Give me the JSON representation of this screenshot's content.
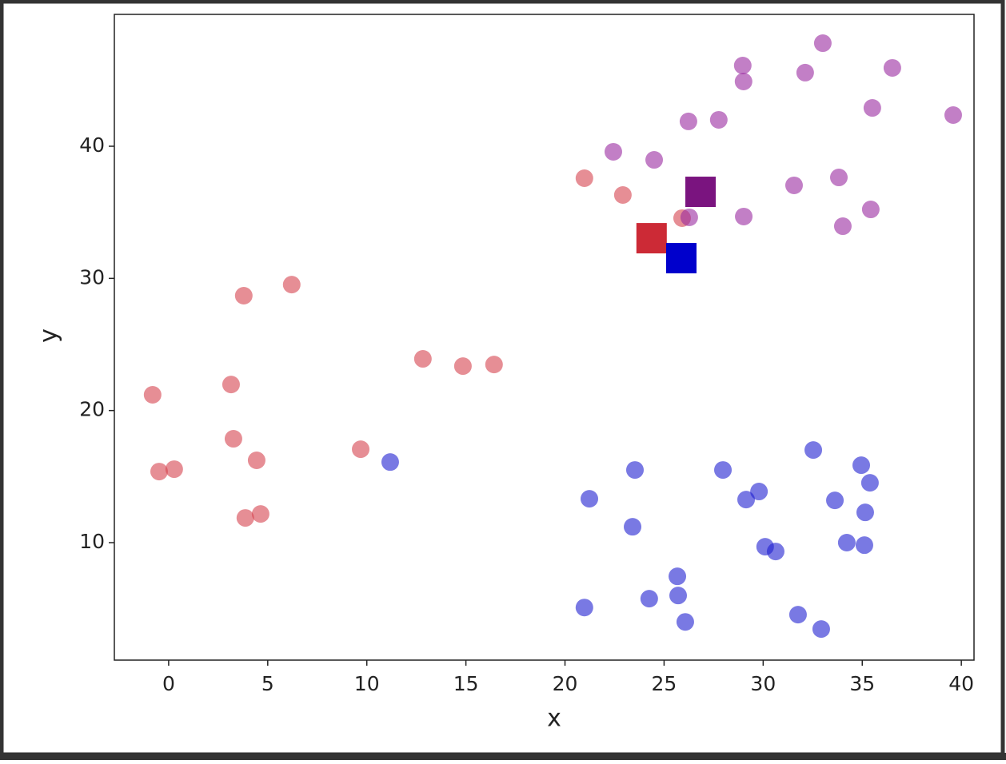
{
  "chart_data": {
    "type": "scatter",
    "x_label": "x",
    "y_label": "y",
    "xlim": [
      -2.74,
      40.64
    ],
    "xticks": [
      0,
      5,
      10,
      15,
      20,
      25,
      30,
      35,
      40
    ],
    "ylim": [
      1.11,
      49.98
    ],
    "yticks": [
      10,
      20,
      30,
      40
    ],
    "grid": false,
    "series": [
      {
        "color": "#d5424f",
        "alpha": 0.6,
        "marker": "o",
        "x": [
          20.98,
          22.92,
          25.91,
          3.79,
          6.21,
          12.83,
          14.85,
          16.42,
          -0.81,
          3.15,
          3.27,
          4.44,
          9.69,
          -0.48,
          0.28,
          3.87,
          4.64
        ],
        "values": [
          37.58,
          36.31,
          34.56,
          28.69,
          29.53,
          23.91,
          23.36,
          23.48,
          21.19,
          21.97,
          17.86,
          16.23,
          17.07,
          15.38,
          15.56,
          11.87,
          12.17
        ]
      },
      {
        "color": "#1f1fd0",
        "alpha": 0.6,
        "marker": "o",
        "x": [
          11.18,
          21.23,
          23.53,
          23.41,
          27.97,
          29.79,
          29.14,
          32.53,
          34.95,
          35.39,
          33.62,
          35.15,
          30.1,
          30.63,
          34.22,
          35.11,
          25.67,
          25.71,
          24.25,
          20.98,
          26.07,
          31.76,
          32.93
        ],
        "values": [
          16.1,
          13.32,
          15.5,
          11.2,
          15.5,
          13.87,
          13.26,
          17.01,
          15.86,
          14.53,
          13.2,
          12.29,
          9.69,
          9.33,
          10.0,
          9.81,
          7.45,
          6.0,
          5.76,
          5.09,
          4.0,
          4.55,
          3.46
        ]
      },
      {
        "color": "#9a2aa0",
        "alpha": 0.6,
        "marker": "o",
        "x": [
          33.01,
          28.97,
          29.01,
          32.12,
          36.52,
          35.51,
          39.59,
          26.23,
          27.76,
          22.44,
          24.5,
          31.56,
          33.82,
          26.27,
          29.02,
          34.02,
          35.43
        ],
        "values": [
          47.8,
          46.11,
          44.9,
          45.57,
          45.93,
          42.9,
          42.36,
          41.88,
          42.0,
          39.58,
          38.97,
          37.04,
          37.64,
          34.62,
          34.68,
          33.95,
          35.22
        ]
      },
      {
        "color": "#cc2a36",
        "alpha": 1,
        "marker": "s",
        "x": [
          24.37
        ],
        "values": [
          33.04
        ]
      },
      {
        "color": "#0000cc",
        "alpha": 1,
        "marker": "s",
        "x": [
          25.87
        ],
        "values": [
          31.53
        ]
      },
      {
        "color": "#7a147f",
        "alpha": 1,
        "marker": "s",
        "x": [
          26.84
        ],
        "values": [
          36.55
        ]
      }
    ]
  }
}
